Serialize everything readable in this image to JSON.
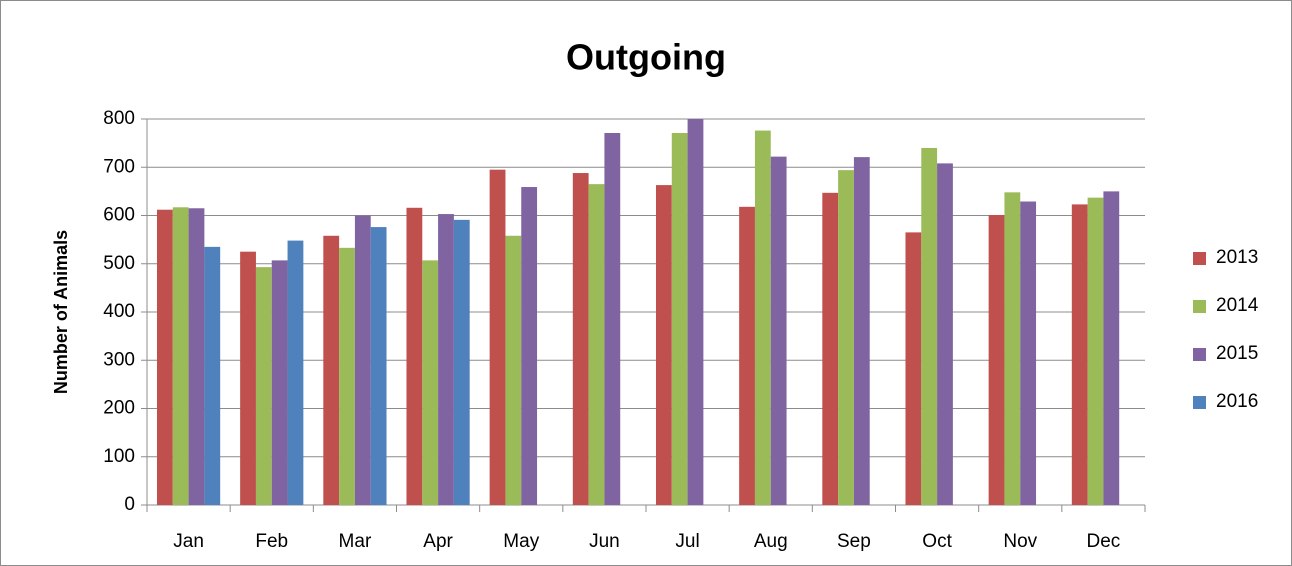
{
  "chart_data": {
    "type": "bar",
    "title": "Outgoing",
    "y_label": "Number of Animals",
    "categories": [
      "Jan",
      "Feb",
      "Mar",
      "Apr",
      "May",
      "Jun",
      "Jul",
      "Aug",
      "Sep",
      "Oct",
      "Nov",
      "Dec"
    ],
    "series": [
      {
        "name": "2013",
        "color": "#c0504d",
        "values": [
          612,
          525,
          558,
          616,
          695,
          688,
          663,
          618,
          647,
          565,
          601,
          623
        ]
      },
      {
        "name": "2014",
        "color": "#9bbb59",
        "values": [
          617,
          493,
          533,
          507,
          558,
          665,
          771,
          776,
          694,
          740,
          648,
          637
        ]
      },
      {
        "name": "2015",
        "color": "#8064a2",
        "values": [
          615,
          507,
          600,
          603,
          659,
          771,
          800,
          722,
          721,
          708,
          629,
          650
        ]
      },
      {
        "name": "2016",
        "color": "#4f81bd",
        "values": [
          535,
          548,
          576,
          591,
          null,
          null,
          null,
          null,
          null,
          null,
          null,
          null
        ]
      }
    ],
    "ylim": [
      0,
      800
    ],
    "yticks": [
      0,
      100,
      200,
      300,
      400,
      500,
      600,
      700,
      800
    ],
    "grid": true,
    "legend": "right"
  }
}
